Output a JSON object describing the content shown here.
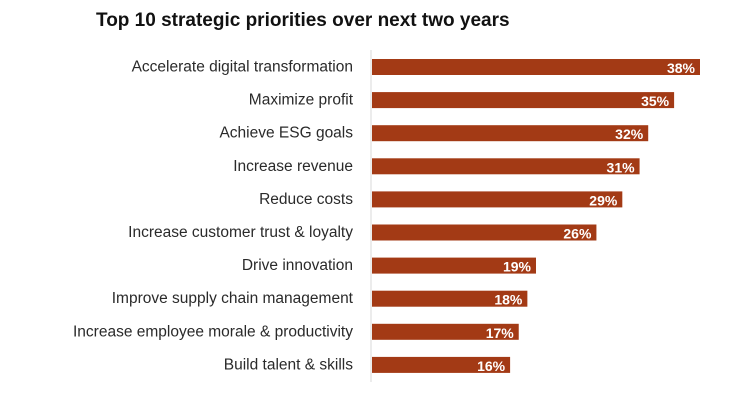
{
  "chart_data": {
    "type": "bar",
    "orientation": "horizontal",
    "title": "Top 10 strategic priorities over next two years",
    "categories": [
      "Accelerate digital transformation",
      "Maximize profit",
      "Achieve ESG goals",
      "Increase revenue",
      "Reduce costs",
      "Increase customer trust & loyalty",
      "Drive innovation",
      "Improve supply chain management",
      "Increase employee morale & productivity",
      "Build talent & skills"
    ],
    "values": [
      38,
      35,
      32,
      31,
      29,
      26,
      19,
      18,
      17,
      16
    ],
    "value_labels": [
      "38%",
      "35%",
      "32%",
      "31%",
      "29%",
      "26%",
      "19%",
      "18%",
      "17%",
      "16%"
    ],
    "xlabel": "",
    "ylabel": "",
    "xlim": [
      0,
      40
    ],
    "grid": false,
    "legend": "none",
    "colors": {
      "bar": "#a33a15",
      "label_text": "#2a2a2a",
      "value_text": "#ffffff",
      "axis": "#d9d9d9"
    }
  }
}
